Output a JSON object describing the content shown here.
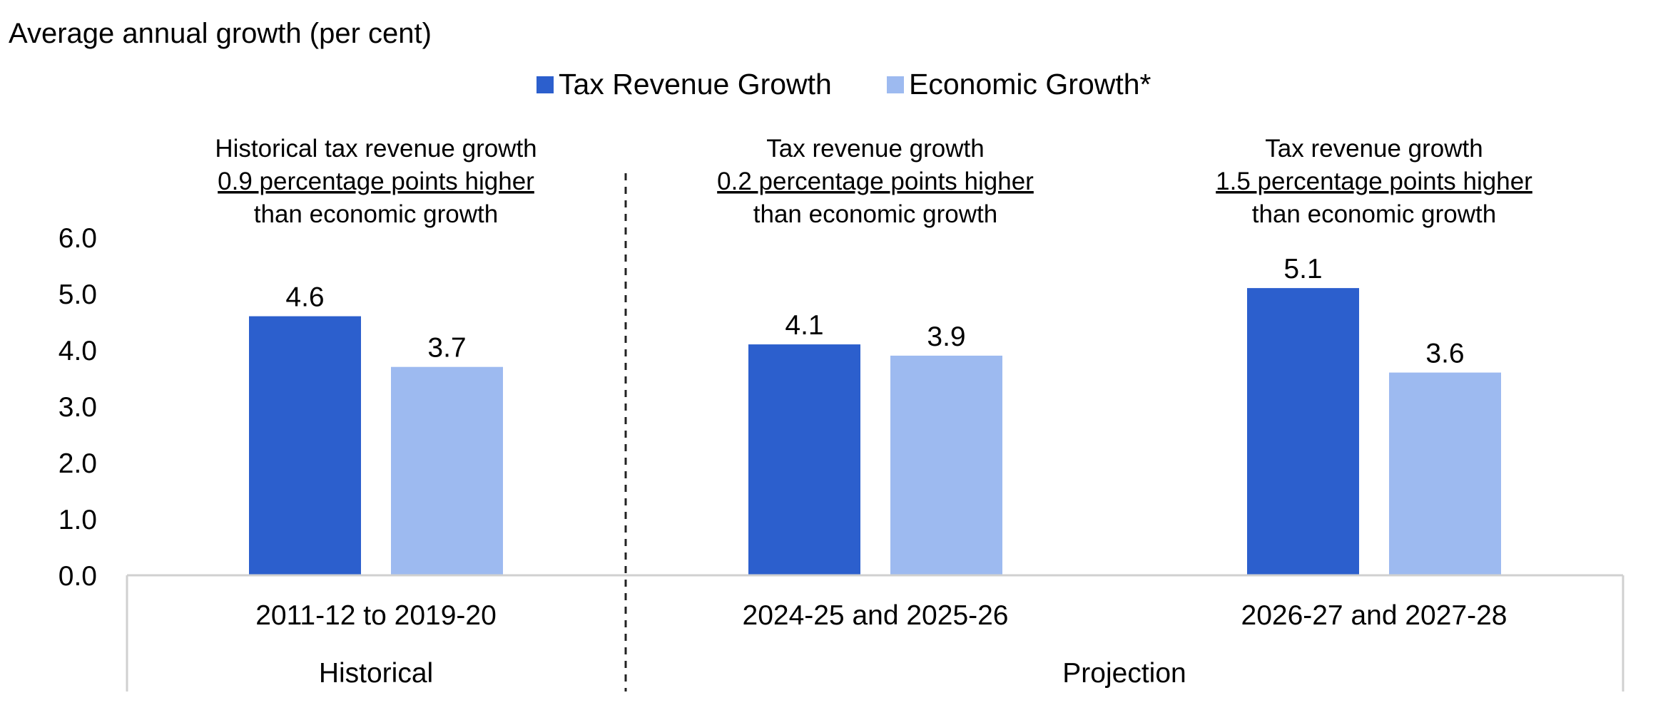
{
  "chart_data": {
    "type": "bar",
    "title": "",
    "ylabel": "Average annual growth (per cent)",
    "xlabel": "",
    "ylim": [
      0,
      6
    ],
    "yticks": [
      "0.0",
      "1.0",
      "2.0",
      "3.0",
      "4.0",
      "5.0",
      "6.0"
    ],
    "categories": [
      "2011-12 to 2019-20",
      "2024-25 and 2025-26",
      "2026-27 and 2027-28"
    ],
    "series": [
      {
        "name": "Tax Revenue Growth",
        "values": [
          4.6,
          4.1,
          5.1
        ],
        "labels": [
          "4.6",
          "4.1",
          "5.1"
        ],
        "color": "#2c5fcd"
      },
      {
        "name": "Economic Growth*",
        "values": [
          3.7,
          3.9,
          3.6
        ],
        "labels": [
          "3.7",
          "3.9",
          "3.6"
        ],
        "color": "#9dbaf0"
      }
    ],
    "groups": [
      "Historical",
      "Projection"
    ],
    "legend_position": "top-center",
    "grid": false,
    "annotations": [
      {
        "line1": "Historical tax revenue growth",
        "line2": "0.9 percentage points higher",
        "line3": "than economic growth"
      },
      {
        "line1": "Tax revenue growth",
        "line2": "0.2 percentage points higher",
        "line3": "than economic growth"
      },
      {
        "line1": "Tax revenue growth",
        "line2": "1.5 percentage points higher",
        "line3": "than economic growth"
      }
    ]
  }
}
